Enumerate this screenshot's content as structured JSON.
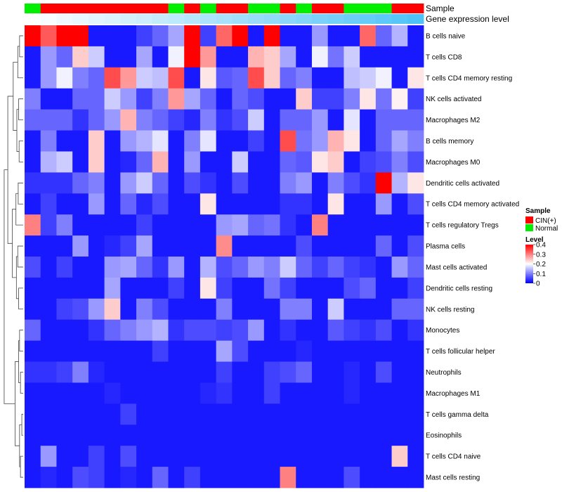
{
  "chart_data": {
    "type": "heatmap",
    "annotations": {
      "sample_label": "Sample",
      "gene_label": "Gene expression level"
    },
    "rows": [
      "B cells naive",
      "T cells CD8",
      "T cells CD4 memory resting",
      "NK cells activated",
      "Macrophages M2",
      "B cells memory",
      "Macrophages M0",
      "Dendritic cells activated",
      "T cells CD4 memory activated",
      "T cells regulatory  Tregs",
      "Plasma cells",
      "Mast cells activated",
      "Dendritic cells resting",
      "NK cells resting",
      "Monocytes",
      "T cells follicular helper",
      "Neutrophils",
      "Macrophages M1",
      "T cells gamma delta",
      "Eosinophils",
      "T cells CD4 naive",
      "Mast cells resting"
    ],
    "samples": [
      "Normal",
      "CIN(+)",
      "CIN(+)",
      "CIN(+)",
      "CIN(+)",
      "CIN(+)",
      "CIN(+)",
      "CIN(+)",
      "CIN(+)",
      "Normal",
      "CIN(+)",
      "Normal",
      "CIN(+)",
      "CIN(+)",
      "Normal",
      "Normal",
      "CIN(+)",
      "Normal",
      "CIN(+)",
      "CIN(+)",
      "Normal",
      "Normal",
      "Normal",
      "CIN(+)",
      "CIN(+)"
    ],
    "gene_expression": [
      0.0,
      0.01,
      0.02,
      0.03,
      0.04,
      0.05,
      0.06,
      0.07,
      0.08,
      0.09,
      0.1,
      0.11,
      0.12,
      0.13,
      0.14,
      0.15,
      0.16,
      0.17,
      0.18,
      0.19,
      0.2,
      0.21,
      0.22,
      0.23,
      0.24
    ],
    "values": [
      [
        0.4,
        0.33,
        0.4,
        0.4,
        0.02,
        0.02,
        0.02,
        0.05,
        0.08,
        0.13,
        0.4,
        0.05,
        0.32,
        0.4,
        0.02,
        0.4,
        0.02,
        0.02,
        0.12,
        0.02,
        0.02,
        0.32,
        0.08,
        0.14,
        0.02
      ],
      [
        0.02,
        0.12,
        0.08,
        0.24,
        0.16,
        0.02,
        0.02,
        0.13,
        0.02,
        0.19,
        0.4,
        0.28,
        0.02,
        0.02,
        0.26,
        0.24,
        0.13,
        0.02,
        0.19,
        0.09,
        0.16,
        0.02,
        0.02,
        0.02,
        0.02
      ],
      [
        0.02,
        0.12,
        0.19,
        0.1,
        0.08,
        0.34,
        0.28,
        0.16,
        0.15,
        0.34,
        0.02,
        0.22,
        0.07,
        0.08,
        0.34,
        0.24,
        0.08,
        0.1,
        0.02,
        0.02,
        0.15,
        0.16,
        0.19,
        0.02,
        0.22
      ],
      [
        0.1,
        0.02,
        0.02,
        0.08,
        0.08,
        0.16,
        0.12,
        0.05,
        0.1,
        0.28,
        0.13,
        0.08,
        0.02,
        0.08,
        0.06,
        0.02,
        0.02,
        0.24,
        0.05,
        0.05,
        0.1,
        0.22,
        0.09,
        0.21,
        0.05
      ],
      [
        0.08,
        0.08,
        0.08,
        0.04,
        0.08,
        0.12,
        0.26,
        0.1,
        0.08,
        0.05,
        0.03,
        0.1,
        0.04,
        0.06,
        0.16,
        0.02,
        0.08,
        0.08,
        0.12,
        0.02,
        0.18,
        0.02,
        0.08,
        0.08,
        0.08
      ],
      [
        0.02,
        0.1,
        0.02,
        0.02,
        0.24,
        0.02,
        0.12,
        0.14,
        0.18,
        0.02,
        0.1,
        0.18,
        0.02,
        0.02,
        0.05,
        0.02,
        0.34,
        0.09,
        0.12,
        0.26,
        0.22,
        0.02,
        0.08,
        0.13,
        0.1
      ],
      [
        0.02,
        0.14,
        0.16,
        0.02,
        0.24,
        0.02,
        0.03,
        0.08,
        0.26,
        0.02,
        0.12,
        0.02,
        0.02,
        0.16,
        0.02,
        0.02,
        0.08,
        0.07,
        0.22,
        0.24,
        0.02,
        0.05,
        0.06,
        0.1,
        0.06
      ],
      [
        0.04,
        0.04,
        0.04,
        0.08,
        0.1,
        0.02,
        0.12,
        0.16,
        0.08,
        0.02,
        0.06,
        0.04,
        0.02,
        0.06,
        0.02,
        0.02,
        0.1,
        0.12,
        0.02,
        0.1,
        0.06,
        0.04,
        0.4,
        0.14,
        0.22
      ],
      [
        0.02,
        0.05,
        0.02,
        0.02,
        0.12,
        0.02,
        0.08,
        0.03,
        0.06,
        0.02,
        0.02,
        0.22,
        0.02,
        0.02,
        0.02,
        0.02,
        0.04,
        0.04,
        0.02,
        0.22,
        0.02,
        0.02,
        0.12,
        0.02,
        0.06
      ],
      [
        0.3,
        0.05,
        0.1,
        0.02,
        0.02,
        0.02,
        0.02,
        0.05,
        0.02,
        0.02,
        0.02,
        0.02,
        0.12,
        0.13,
        0.08,
        0.09,
        0.04,
        0.02,
        0.3,
        0.02,
        0.02,
        0.02,
        0.02,
        0.02,
        0.02
      ],
      [
        0.02,
        0.02,
        0.02,
        0.12,
        0.02,
        0.03,
        0.05,
        0.13,
        0.02,
        0.02,
        0.02,
        0.02,
        0.29,
        0.02,
        0.02,
        0.02,
        0.02,
        0.06,
        0.02,
        0.02,
        0.02,
        0.02,
        0.08,
        0.02,
        0.06
      ],
      [
        0.06,
        0.02,
        0.05,
        0.02,
        0.02,
        0.12,
        0.13,
        0.08,
        0.04,
        0.12,
        0.02,
        0.14,
        0.06,
        0.08,
        0.12,
        0.1,
        0.16,
        0.08,
        0.05,
        0.08,
        0.05,
        0.04,
        0.02,
        0.12,
        0.08
      ],
      [
        0.02,
        0.02,
        0.02,
        0.02,
        0.02,
        0.13,
        0.02,
        0.02,
        0.02,
        0.05,
        0.02,
        0.22,
        0.05,
        0.02,
        0.02,
        0.09,
        0.05,
        0.02,
        0.02,
        0.02,
        0.06,
        0.08,
        0.02,
        0.02,
        0.05
      ],
      [
        0.02,
        0.02,
        0.05,
        0.06,
        0.12,
        0.24,
        0.02,
        0.1,
        0.06,
        0.02,
        0.02,
        0.02,
        0.1,
        0.02,
        0.02,
        0.02,
        0.1,
        0.1,
        0.02,
        0.16,
        0.02,
        0.02,
        0.02,
        0.08,
        0.08
      ],
      [
        0.08,
        0.02,
        0.02,
        0.02,
        0.04,
        0.08,
        0.1,
        0.12,
        0.14,
        0.04,
        0.06,
        0.06,
        0.05,
        0.06,
        0.12,
        0.02,
        0.04,
        0.02,
        0.02,
        0.07,
        0.05,
        0.04,
        0.06,
        0.02,
        0.04
      ],
      [
        0.02,
        0.02,
        0.02,
        0.02,
        0.02,
        0.02,
        0.02,
        0.02,
        0.05,
        0.02,
        0.02,
        0.02,
        0.13,
        0.06,
        0.02,
        0.02,
        0.02,
        0.03,
        0.02,
        0.02,
        0.02,
        0.02,
        0.02,
        0.02,
        0.02
      ],
      [
        0.04,
        0.04,
        0.05,
        0.1,
        0.03,
        0.02,
        0.02,
        0.02,
        0.02,
        0.02,
        0.02,
        0.02,
        0.05,
        0.02,
        0.02,
        0.05,
        0.06,
        0.08,
        0.02,
        0.02,
        0.03,
        0.02,
        0.06,
        0.02,
        0.02
      ],
      [
        0.02,
        0.02,
        0.02,
        0.02,
        0.02,
        0.03,
        0.02,
        0.02,
        0.02,
        0.02,
        0.02,
        0.03,
        0.04,
        0.02,
        0.02,
        0.05,
        0.02,
        0.02,
        0.02,
        0.02,
        0.03,
        0.02,
        0.02,
        0.02,
        0.02
      ],
      [
        0.02,
        0.02,
        0.02,
        0.02,
        0.02,
        0.02,
        0.05,
        0.02,
        0.02,
        0.02,
        0.02,
        0.02,
        0.02,
        0.02,
        0.02,
        0.02,
        0.02,
        0.02,
        0.02,
        0.02,
        0.02,
        0.02,
        0.02,
        0.02,
        0.02
      ],
      [
        0.02,
        0.02,
        0.02,
        0.02,
        0.02,
        0.02,
        0.02,
        0.02,
        0.02,
        0.02,
        0.02,
        0.02,
        0.02,
        0.02,
        0.02,
        0.02,
        0.02,
        0.02,
        0.02,
        0.02,
        0.02,
        0.02,
        0.02,
        0.02,
        0.02
      ],
      [
        0.02,
        0.12,
        0.02,
        0.02,
        0.05,
        0.02,
        0.06,
        0.02,
        0.02,
        0.02,
        0.02,
        0.02,
        0.02,
        0.02,
        0.02,
        0.02,
        0.02,
        0.02,
        0.02,
        0.02,
        0.02,
        0.02,
        0.02,
        0.24,
        0.02
      ],
      [
        0.02,
        0.03,
        0.02,
        0.06,
        0.05,
        0.02,
        0.03,
        0.02,
        0.08,
        0.02,
        0.05,
        0.02,
        0.02,
        0.02,
        0.02,
        0.02,
        0.3,
        0.02,
        0.02,
        0.02,
        0.06,
        0.02,
        0.02,
        0.02,
        0.02
      ]
    ],
    "legend": {
      "sample_title": "Sample",
      "sample_items": [
        {
          "label": "CIN(+)",
          "color": "#ff0000"
        },
        {
          "label": "Normal",
          "color": "#00ee00"
        }
      ],
      "level_title": "Level",
      "level_ticks": [
        "0.4",
        "0.3",
        "0.2",
        "0.1",
        "0"
      ],
      "level_tick_values": [
        0.4,
        0.3,
        0.2,
        0.1,
        0.0
      ]
    },
    "colors": {
      "low": "#0000ff",
      "mid": "#ffffff",
      "high": "#ff0000",
      "gene_low": "#ffffff",
      "gene_high": "#4fc3f7"
    },
    "value_range": [
      0,
      0.4
    ]
  }
}
